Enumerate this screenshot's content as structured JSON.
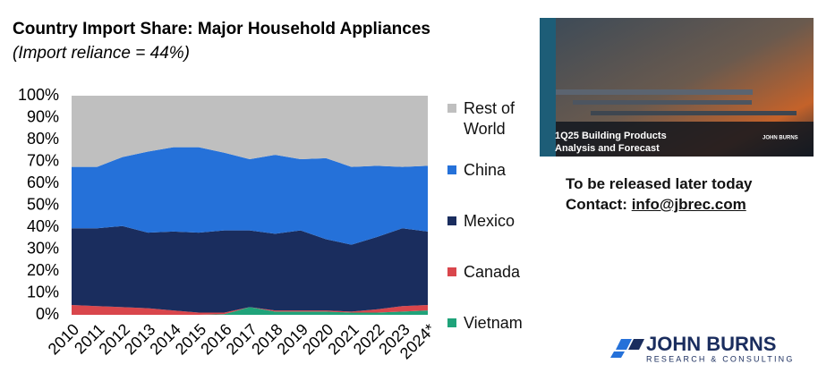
{
  "chart_data": {
    "type": "area",
    "stacked": true,
    "title": "Country Import Share: Major Household Appliances",
    "subtitle": "(Import reliance = 44%)",
    "categories": [
      "2010",
      "2011",
      "2012",
      "2013",
      "2014",
      "2015",
      "2016",
      "2017",
      "2018",
      "2019",
      "2020",
      "2021",
      "2022",
      "2023",
      "2024*"
    ],
    "series": [
      {
        "name": "Vietnam",
        "color": "#1fa37a",
        "values": [
          0,
          0,
          0,
          0,
          0,
          0,
          0.3,
          3.5,
          1.5,
          1.5,
          1.5,
          1,
          1,
          1.5,
          2
        ]
      },
      {
        "name": "Canada",
        "color": "#d9464c",
        "values": [
          4.5,
          4,
          3.5,
          3,
          2,
          1,
          0.7,
          0,
          0.5,
          0.5,
          0.5,
          0.5,
          1.5,
          2.5,
          2.5
        ]
      },
      {
        "name": "Mexico",
        "color": "#1a2d5e",
        "values": [
          35,
          35.5,
          37,
          34.5,
          36,
          36.5,
          37.5,
          35,
          35,
          36.5,
          32.5,
          30.5,
          33,
          35.5,
          33.5
        ]
      },
      {
        "name": "China",
        "color": "#2571d9",
        "values": [
          28,
          28,
          31.5,
          37,
          38.5,
          39,
          35.5,
          32.5,
          36,
          32.5,
          37,
          35.5,
          32.5,
          28,
          30
        ]
      },
      {
        "name": "Rest of World",
        "color": "#bfbfbf",
        "values": [
          32.5,
          32.5,
          28,
          25.5,
          23.5,
          23.5,
          26,
          29,
          27,
          29,
          28.5,
          32.5,
          32,
          32.5,
          32
        ]
      }
    ],
    "ylim": [
      0,
      100
    ],
    "yticks": [
      {
        "value": 0,
        "label": "0%"
      },
      {
        "value": 10,
        "label": "10%"
      },
      {
        "value": 20,
        "label": "20%"
      },
      {
        "value": 30,
        "label": "30%"
      },
      {
        "value": 40,
        "label": "40%"
      },
      {
        "value": 50,
        "label": "50%"
      },
      {
        "value": 60,
        "label": "60%"
      },
      {
        "value": 70,
        "label": "70%"
      },
      {
        "value": 80,
        "label": "80%"
      },
      {
        "value": 90,
        "label": "90%"
      },
      {
        "value": 100,
        "label": "100%"
      }
    ],
    "grid": false
  },
  "promo": {
    "cover_title": [
      "1Q25 Building Products",
      "Analysis and Forecast"
    ],
    "cover_brand": "JOHN BURNS",
    "note": "To be released later today",
    "contact_label": "Contact:",
    "contact_email": "info@jbrec.com"
  },
  "logo": {
    "name": "JOHN BURNS",
    "tagline": "RESEARCH & CONSULTING"
  }
}
